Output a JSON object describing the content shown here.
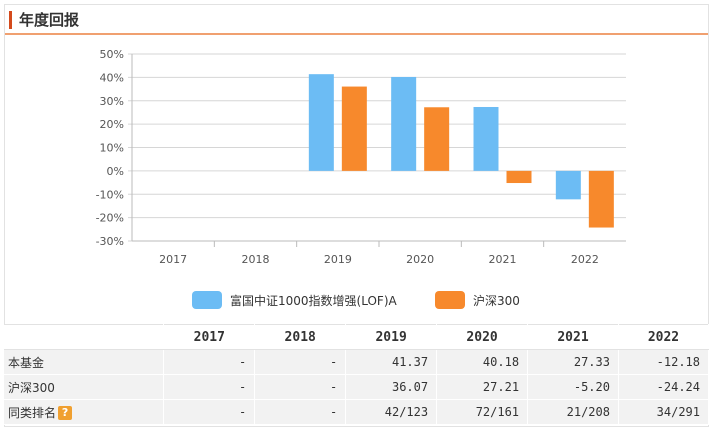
{
  "header": {
    "title": "年度回报"
  },
  "chart_data": {
    "type": "bar",
    "categories": [
      "2017",
      "2018",
      "2019",
      "2020",
      "2021",
      "2022"
    ],
    "series": [
      {
        "name": "富国中证1000指数增强(LOF)A",
        "color": "#6cbcf4",
        "values": [
          null,
          null,
          41.37,
          40.18,
          27.33,
          -12.18
        ]
      },
      {
        "name": "沪深300",
        "color": "#f7892c",
        "values": [
          null,
          null,
          36.07,
          27.21,
          -5.2,
          -24.24
        ]
      }
    ],
    "yticks": [
      "50%",
      "40%",
      "30%",
      "20%",
      "10%",
      "0%",
      "-10%",
      "-20%",
      "-30%"
    ],
    "ylim": [
      -30,
      50
    ],
    "grid": true,
    "legend_position": "bottom"
  },
  "table": {
    "headers": [
      "",
      "2017",
      "2018",
      "2019",
      "2020",
      "2021",
      "2022"
    ],
    "rows": [
      {
        "label": "本基金",
        "cells": [
          "-",
          "-",
          "41.37",
          "40.18",
          "27.33",
          "-12.18"
        ]
      },
      {
        "label": "沪深300",
        "cells": [
          "-",
          "-",
          "36.07",
          "27.21",
          "-5.20",
          "-24.24"
        ]
      },
      {
        "label": "同类排名",
        "icon": "question-icon",
        "icon_text": "?",
        "cells": [
          "-",
          "-",
          "42/123",
          "72/161",
          "21/208",
          "34/291"
        ]
      }
    ]
  }
}
